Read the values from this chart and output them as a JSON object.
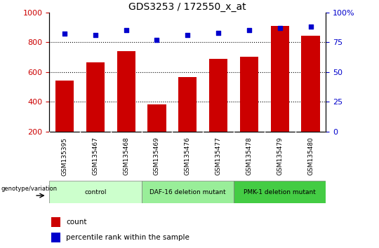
{
  "title": "GDS3253 / 172550_x_at",
  "samples": [
    "GSM135395",
    "GSM135467",
    "GSM135468",
    "GSM135469",
    "GSM135476",
    "GSM135477",
    "GSM135478",
    "GSM135479",
    "GSM135480"
  ],
  "counts": [
    540,
    665,
    740,
    380,
    565,
    690,
    700,
    910,
    845
  ],
  "percentile_ranks": [
    82,
    81,
    85,
    77,
    81,
    83,
    85,
    87,
    88
  ],
  "ylim_left": [
    200,
    1000
  ],
  "ylim_right": [
    0,
    100
  ],
  "yticks_left": [
    200,
    400,
    600,
    800,
    1000
  ],
  "yticks_right": [
    0,
    25,
    50,
    75,
    100
  ],
  "bar_color": "#cc0000",
  "dot_color": "#0000cc",
  "bg_color": "#ffffff",
  "tick_label_color_left": "#cc0000",
  "tick_label_color_right": "#0000cc",
  "groups": [
    {
      "label": "control",
      "start": 0,
      "end": 2,
      "color": "#ccffcc"
    },
    {
      "label": "DAF-16 deletion mutant",
      "start": 3,
      "end": 5,
      "color": "#99ee99"
    },
    {
      "label": "PMK-1 deletion mutant",
      "start": 6,
      "end": 8,
      "color": "#44cc44"
    }
  ],
  "sample_bg_color": "#cccccc",
  "legend_count_color": "#cc0000",
  "legend_pct_color": "#0000cc",
  "genotype_label": "genotype/variation",
  "legend_count_label": "count",
  "legend_pct_label": "percentile rank within the sample",
  "figure_width": 5.4,
  "figure_height": 3.54,
  "dpi": 100
}
